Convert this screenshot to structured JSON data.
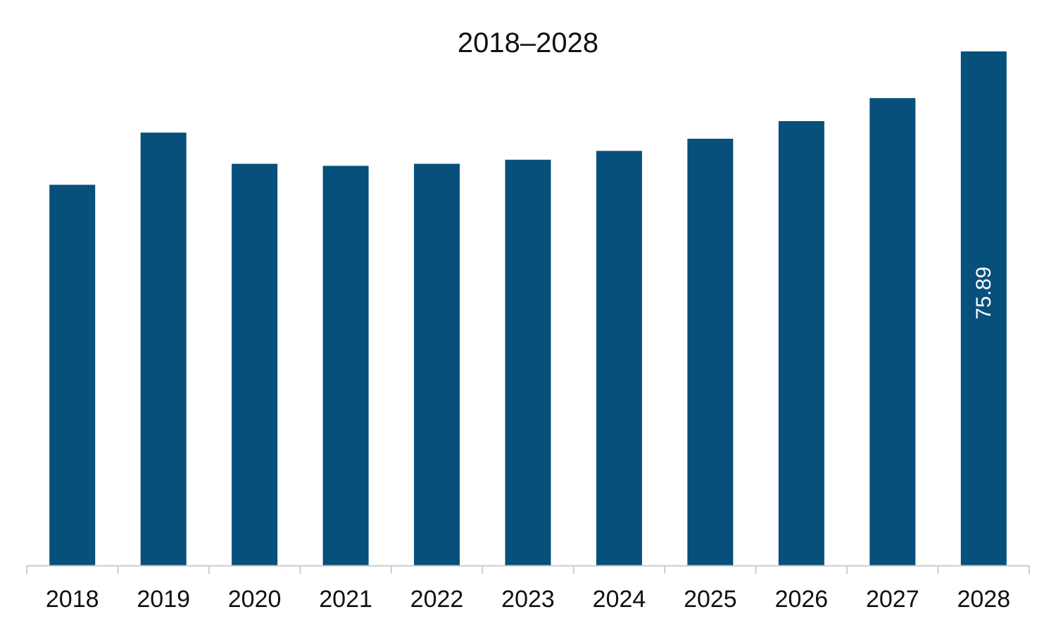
{
  "chart_data": {
    "type": "bar",
    "title": "2018–2028",
    "xlabel": "",
    "ylabel": "",
    "categories": [
      "2018",
      "2019",
      "2020",
      "2021",
      "2022",
      "2023",
      "2024",
      "2025",
      "2026",
      "2027",
      "2028"
    ],
    "series": [
      {
        "values": [
          56.2,
          63.9,
          59.3,
          59.0,
          59.3,
          59.9,
          61.2,
          63.0,
          65.6,
          69.0,
          75.89
        ],
        "color": "#08507C"
      }
    ],
    "data_labels": [
      {
        "category": "2028",
        "text": "75.89",
        "orientation": "vertical",
        "color": "#ffffff"
      }
    ],
    "ylim": [
      0,
      75.89
    ],
    "grid": false,
    "legend": "none",
    "axis_color": "#CCCCCC",
    "value_axis_visible": false
  }
}
